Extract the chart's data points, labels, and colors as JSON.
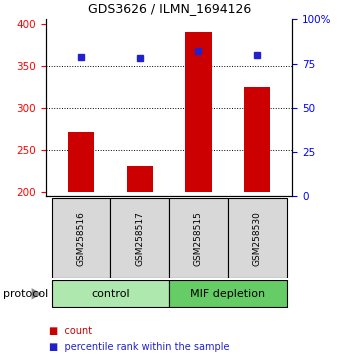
{
  "title": "GDS3626 / ILMN_1694126",
  "samples": [
    "GSM258516",
    "GSM258517",
    "GSM258515",
    "GSM258530"
  ],
  "counts": [
    272,
    231,
    390,
    325
  ],
  "percentile_ranks": [
    79,
    78,
    82,
    80
  ],
  "groups": [
    {
      "label": "control",
      "samples": [
        0,
        1
      ],
      "color": "#aee8ae"
    },
    {
      "label": "MIF depletion",
      "samples": [
        2,
        3
      ],
      "color": "#66cc66"
    }
  ],
  "bar_color": "#cc0000",
  "dot_color": "#2222cc",
  "ylim_left": [
    195,
    405
  ],
  "ylim_right": [
    0,
    100
  ],
  "yticks_left": [
    200,
    250,
    300,
    350,
    400
  ],
  "yticks_right": [
    0,
    25,
    50,
    75,
    100
  ],
  "ybase": 200,
  "grid_values": [
    250,
    300,
    350
  ],
  "protocol_label": "protocol",
  "legend_count": "count",
  "legend_pct": "percentile rank within the sample",
  "sample_bg_color": "#d8d8d8",
  "plot_bg_color": "#ffffff",
  "title_fontsize": 9,
  "tick_fontsize": 7.5,
  "label_fontsize": 6.5,
  "protocol_fontsize": 8,
  "group_fontsize": 8,
  "legend_fontsize": 7
}
